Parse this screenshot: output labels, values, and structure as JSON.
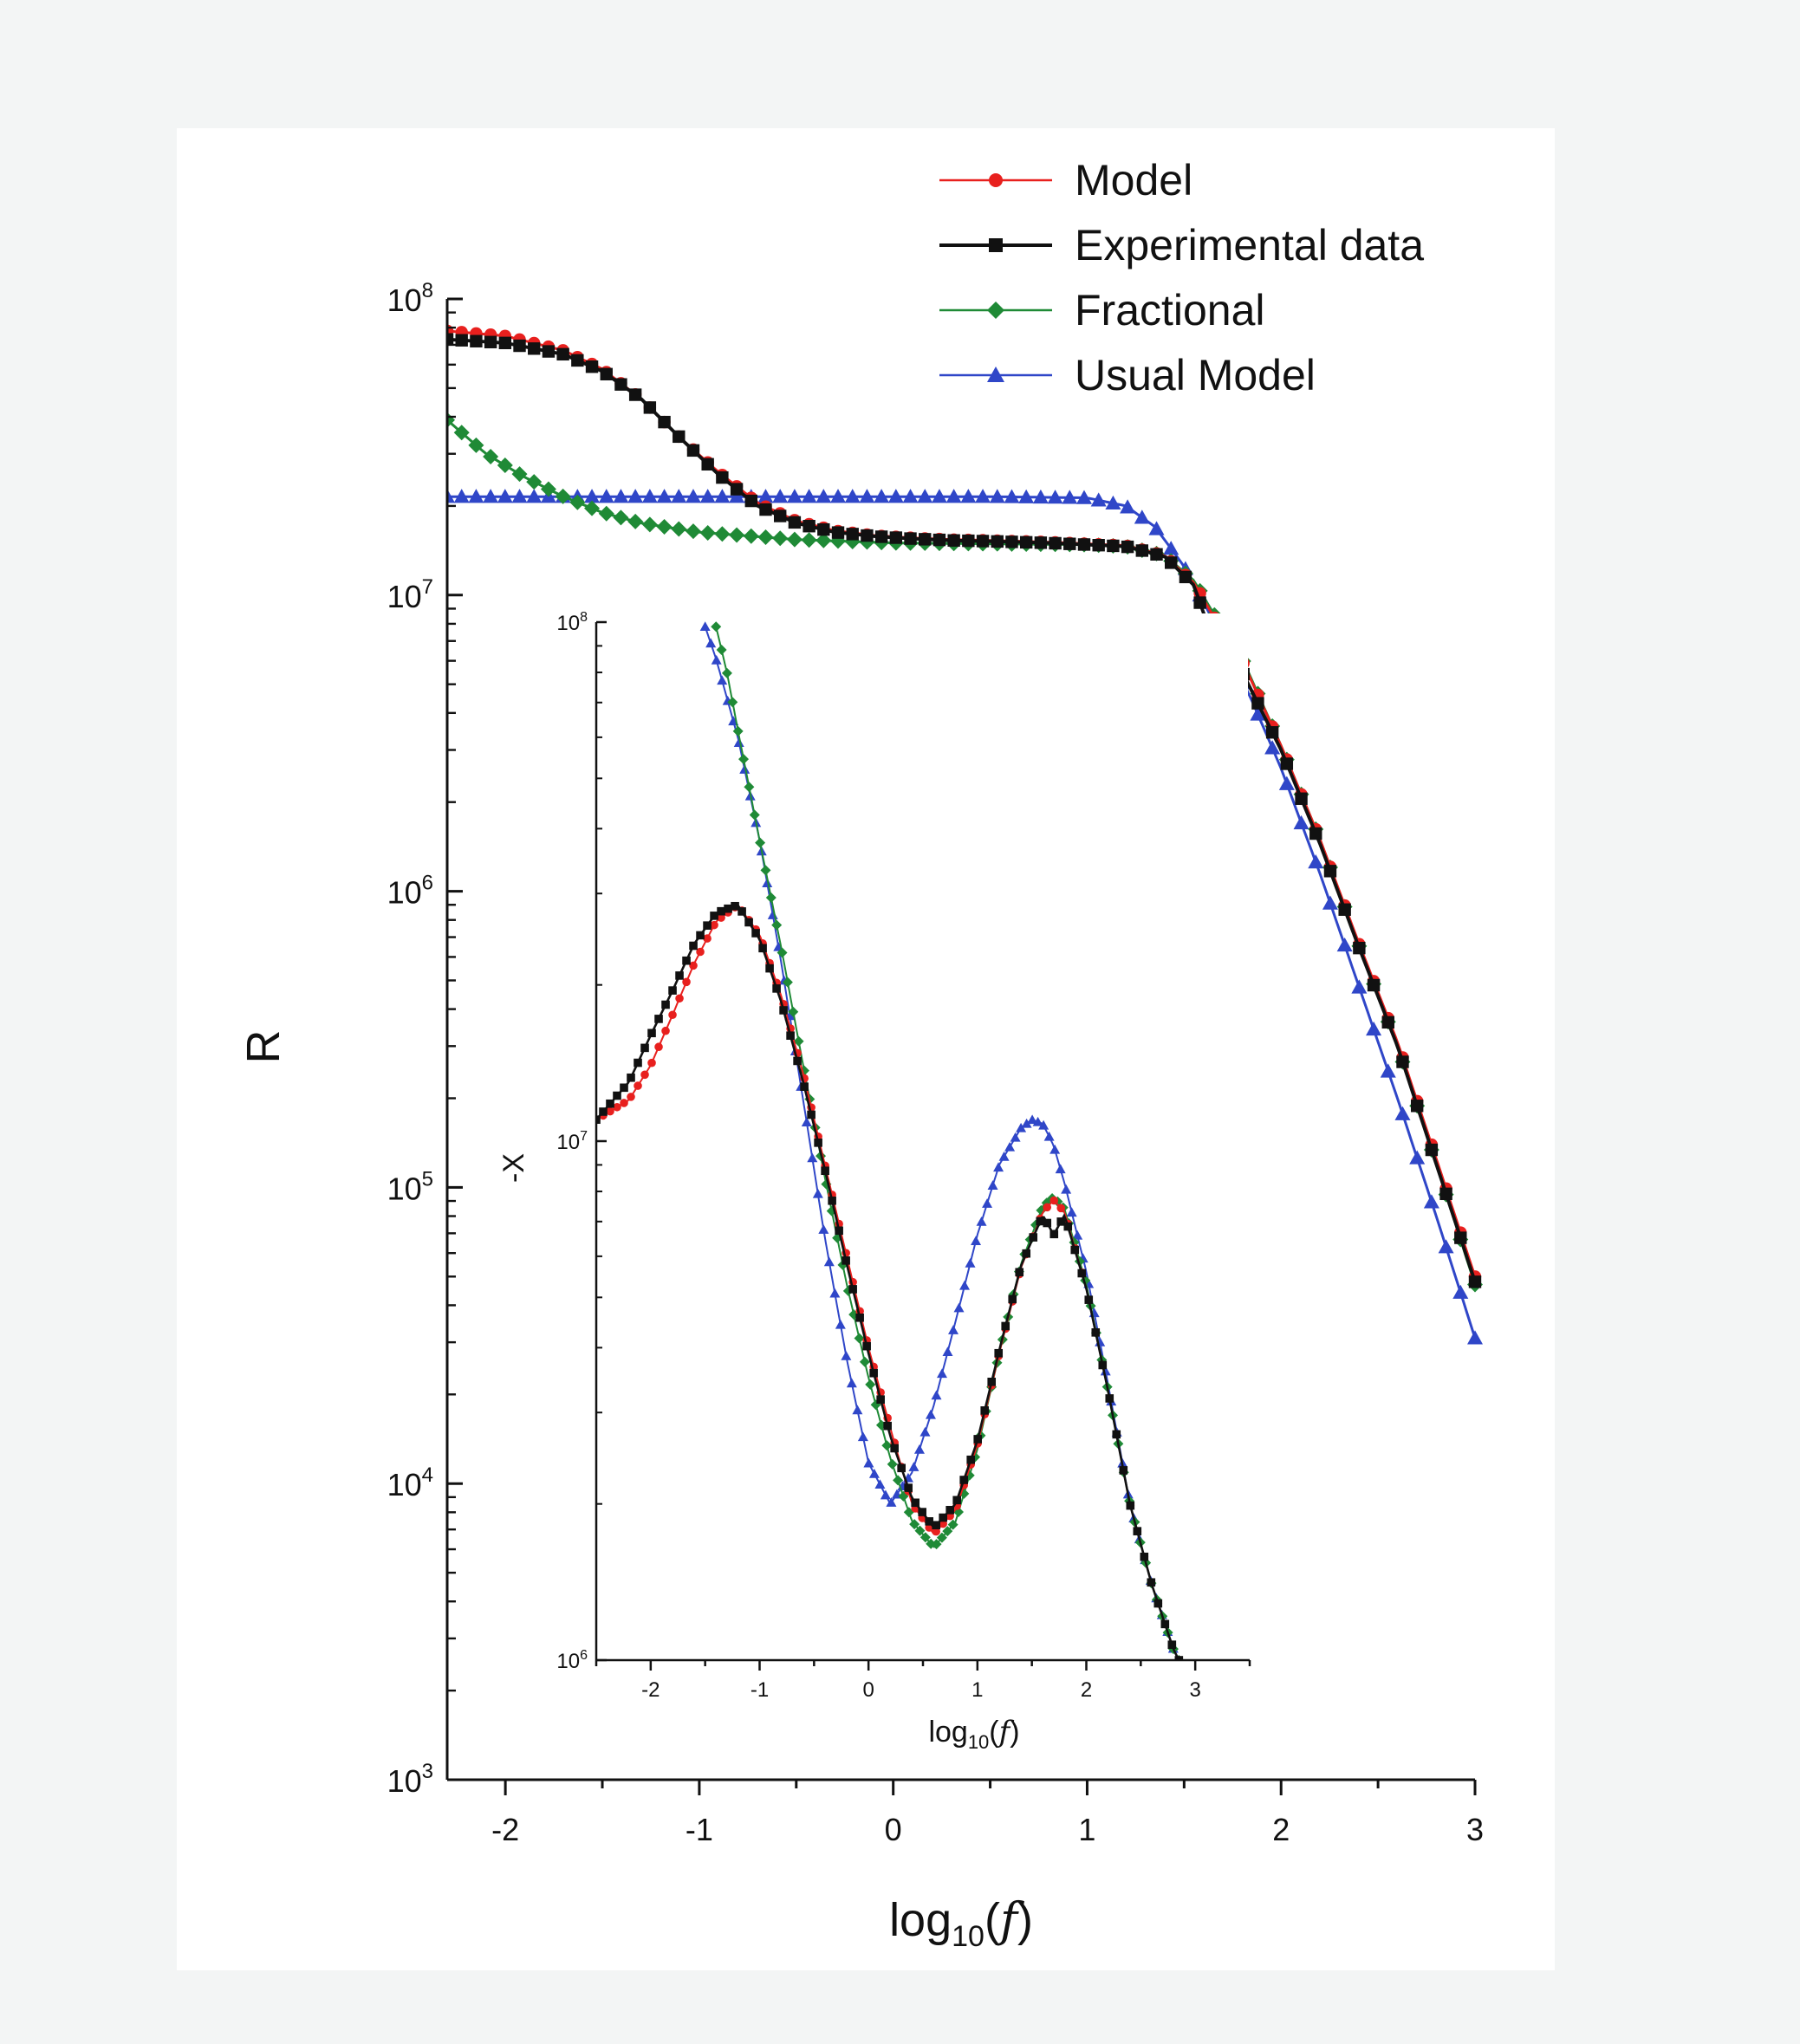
{
  "colors": {
    "model": "#e8201e",
    "experimental": "#111111",
    "fractional": "#1f8a36",
    "usual": "#2f46c8"
  },
  "chart_data": [
    {
      "type": "line",
      "xlabel": "log10(f)",
      "ylabel": "R",
      "xlim": [
        -2.3,
        3.0
      ],
      "ylim": [
        1000,
        100000000
      ],
      "yscale": "log",
      "x_ticks": [
        "-2",
        "-1",
        "0",
        "1",
        "2",
        "3"
      ],
      "y_ticks": [
        {
          "base": "10",
          "exp": "3",
          "value": 1000
        },
        {
          "base": "10",
          "exp": "4",
          "value": 10000
        },
        {
          "base": "10",
          "exp": "5",
          "value": 100000
        },
        {
          "base": "10",
          "exp": "6",
          "value": 1000000
        },
        {
          "base": "10",
          "exp": "7",
          "value": 10000000
        },
        {
          "base": "10",
          "exp": "8",
          "value": 100000000
        }
      ],
      "legend_position": "top-right",
      "series": [
        {
          "name": "Model",
          "key": "model",
          "marker": "circle",
          "x": [
            -2.3,
            -2.0,
            -1.7,
            -1.5,
            -1.3,
            -1.1,
            -0.9,
            -0.7,
            -0.5,
            -0.3,
            -0.1,
            0.1,
            0.3,
            0.5,
            0.8,
            1.0,
            1.2,
            1.4,
            1.55,
            1.65,
            1.8,
            2.0,
            2.2,
            2.4,
            2.6,
            2.8,
            3.0
          ],
          "y": [
            78000000,
            75000000,
            67000000,
            58000000,
            46000000,
            34000000,
            26000000,
            20500000,
            17800000,
            16500000,
            15900000,
            15600000,
            15400000,
            15300000,
            15100000,
            14900000,
            14700000,
            13600000,
            11000000,
            8500000,
            6000000,
            3100000,
            1500000,
            670000,
            310000,
            125000,
            50000
          ]
        },
        {
          "name": "Experimental data",
          "key": "experimental",
          "marker": "square",
          "x": [
            -2.3,
            -2.0,
            -1.7,
            -1.5,
            -1.3,
            -1.1,
            -0.9,
            -0.7,
            -0.5,
            -0.3,
            -0.1,
            0.1,
            0.3,
            0.5,
            0.8,
            1.0,
            1.2,
            1.4,
            1.55,
            1.62,
            1.68,
            1.8,
            2.0,
            2.2,
            2.4,
            2.6,
            2.8,
            3.0
          ],
          "y": [
            73000000,
            71000000,
            65000000,
            57000000,
            46000000,
            34000000,
            25500000,
            20000000,
            17500000,
            16300000,
            15800000,
            15500000,
            15300000,
            15200000,
            15000000,
            14800000,
            14600000,
            13500000,
            10800000,
            8000000,
            5800000,
            5500000,
            3000000,
            1450000,
            650000,
            300000,
            120000,
            48000
          ]
        },
        {
          "name": "Fractional",
          "key": "fractional",
          "marker": "diamond",
          "x": [
            -2.3,
            -2.1,
            -1.9,
            -1.7,
            -1.5,
            -1.3,
            -1.0,
            -0.5,
            0.0,
            0.5,
            1.0,
            1.2,
            1.4,
            1.55,
            1.65,
            1.8,
            2.0,
            2.2,
            2.4,
            2.6,
            2.8,
            3.0
          ],
          "y": [
            39000000,
            30000000,
            25000000,
            21500000,
            19000000,
            17500000,
            16300000,
            15400000,
            15000000,
            14900000,
            14800000,
            14600000,
            13600000,
            11200000,
            8700000,
            6100000,
            3100000,
            1500000,
            660000,
            300000,
            120000,
            47000
          ]
        },
        {
          "name": "Usual Model",
          "key": "usual",
          "marker": "triangle",
          "x": [
            -2.3,
            -2.0,
            -1.5,
            -1.0,
            -0.5,
            0.0,
            0.5,
            1.0,
            1.2,
            1.35,
            1.5,
            1.6,
            1.7,
            1.85,
            2.0,
            2.2,
            2.4,
            2.6,
            2.8,
            3.0
          ],
          "y": [
            21500000,
            21500000,
            21500000,
            21500000,
            21500000,
            21500000,
            21500000,
            21300000,
            20000000,
            17000000,
            12500000,
            9500000,
            7000000,
            4400000,
            2600000,
            1150000,
            480000,
            200000,
            80000,
            31000
          ]
        }
      ]
    },
    {
      "type": "line",
      "xlabel": "log10(f)",
      "ylabel": "-X",
      "xlim": [
        -2.5,
        3.5
      ],
      "ylim": [
        1000000,
        100000000
      ],
      "yscale": "log",
      "x_ticks": [
        "-2",
        "-1",
        "0",
        "1",
        "2",
        "3"
      ],
      "y_ticks": [
        {
          "base": "10",
          "exp": "6",
          "value": 1000000
        },
        {
          "base": "10",
          "exp": "7",
          "value": 10000000
        },
        {
          "base": "10",
          "exp": "8",
          "value": 100000000
        }
      ],
      "series": [
        {
          "name": "Model",
          "key": "model",
          "marker": "circle",
          "x": [
            -2.5,
            -2.2,
            -2.0,
            -1.8,
            -1.6,
            -1.4,
            -1.2,
            -1.0,
            -0.8,
            -0.6,
            -0.4,
            -0.2,
            0.0,
            0.2,
            0.4,
            0.6,
            0.8,
            1.0,
            1.2,
            1.4,
            1.6,
            1.7,
            1.8,
            2.0,
            2.2,
            2.4,
            2.6,
            2.8,
            2.85
          ],
          "y": [
            11000000,
            12000000,
            14000000,
            17500000,
            22000000,
            26500000,
            28500000,
            25000000,
            19000000,
            13500000,
            9000000,
            6000000,
            4000000,
            2800000,
            2000000,
            1750000,
            1950000,
            2600000,
            3900000,
            5700000,
            7300000,
            7700000,
            7300000,
            5200000,
            3300000,
            2000000,
            1400000,
            1050000,
            1000000
          ]
        },
        {
          "name": "Experimental data",
          "key": "experimental",
          "marker": "square",
          "x": [
            -2.5,
            -2.2,
            -2.0,
            -1.8,
            -1.6,
            -1.4,
            -1.2,
            -1.0,
            -0.8,
            -0.6,
            -0.4,
            -0.2,
            0.0,
            0.2,
            0.4,
            0.6,
            0.8,
            1.0,
            1.2,
            1.4,
            1.6,
            1.7,
            1.8,
            2.0,
            2.2,
            2.4,
            2.6,
            2.8,
            2.85
          ],
          "y": [
            11000000,
            13000000,
            16000000,
            19500000,
            24000000,
            27500000,
            28500000,
            24500000,
            18500000,
            13000000,
            8800000,
            5800000,
            3900000,
            2700000,
            2050000,
            1800000,
            2000000,
            2650000,
            3950000,
            5750000,
            7200000,
            6600000,
            7200000,
            5200000,
            3300000,
            2000000,
            1400000,
            1050000,
            1000000
          ]
        },
        {
          "name": "Fractional",
          "key": "fractional",
          "marker": "diamond",
          "x": [
            -1.4,
            -1.3,
            -1.2,
            -1.0,
            -0.8,
            -0.6,
            -0.4,
            -0.2,
            0.0,
            0.2,
            0.4,
            0.6,
            0.8,
            1.0,
            1.2,
            1.4,
            1.6,
            1.7,
            1.8,
            2.0,
            2.2,
            2.4,
            2.6,
            2.8,
            2.85
          ],
          "y": [
            98000000,
            80000000,
            62000000,
            38000000,
            23500000,
            14000000,
            8500000,
            5300000,
            3500000,
            2450000,
            1850000,
            1650000,
            1850000,
            2550000,
            3900000,
            5800000,
            7500000,
            7800000,
            7400000,
            5300000,
            3300000,
            2000000,
            1400000,
            1050000,
            1000000
          ]
        },
        {
          "name": "Usual Model",
          "key": "usual",
          "marker": "triangle",
          "x": [
            -1.5,
            -1.4,
            -1.2,
            -1.0,
            -0.8,
            -0.6,
            -0.4,
            -0.2,
            0.0,
            0.2,
            0.4,
            0.6,
            0.8,
            1.0,
            1.2,
            1.4,
            1.5,
            1.6,
            1.7,
            1.8,
            2.0,
            2.2,
            2.4,
            2.6,
            2.8,
            2.85
          ],
          "y": [
            98000000,
            85000000,
            60000000,
            38000000,
            22000000,
            12000000,
            6500000,
            3800000,
            2400000,
            2000000,
            2300000,
            3100000,
            4500000,
            6600000,
            9000000,
            10600000,
            11000000,
            10800000,
            9800000,
            8300000,
            5600000,
            3400000,
            2000000,
            1400000,
            1050000,
            1000000
          ]
        }
      ]
    }
  ]
}
